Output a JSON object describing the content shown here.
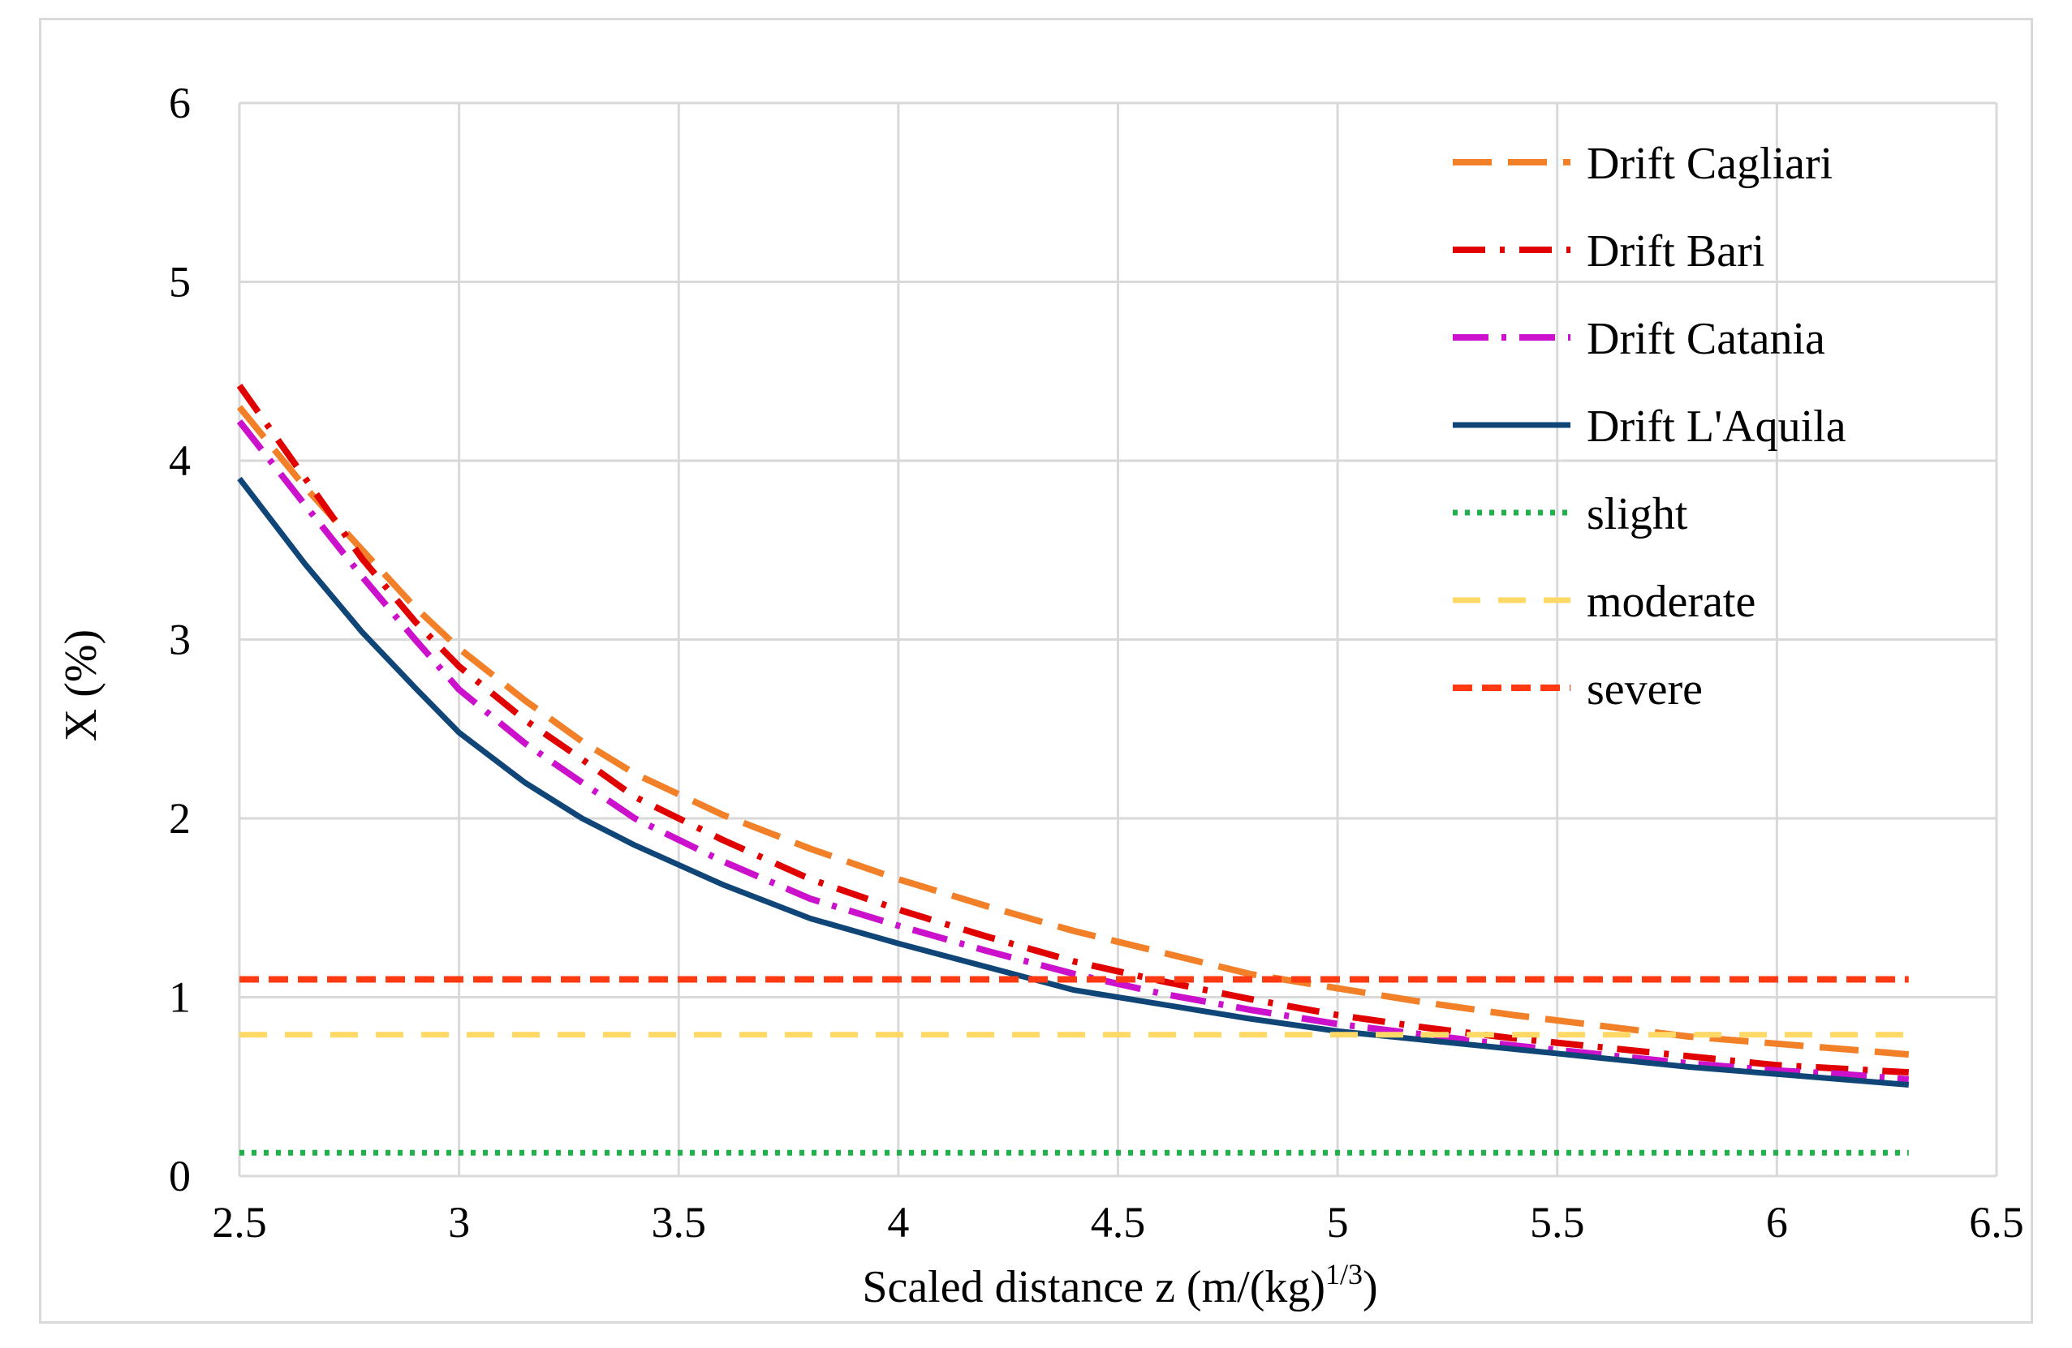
{
  "chart_data": {
    "type": "line",
    "title": "",
    "xlabel": "Scaled distance z  (m/(kg)",
    "xlabel_sup": "1/3",
    "xlabel_end": ")",
    "ylabel": "X (%)",
    "xlim": [
      2.5,
      6.5
    ],
    "ylim": [
      0,
      6
    ],
    "xticks": [
      "2.5",
      "3",
      "3.5",
      "4",
      "4.5",
      "5",
      "5.5",
      "6",
      "6.5"
    ],
    "yticks": [
      "0",
      "1",
      "2",
      "3",
      "4",
      "5",
      "6"
    ],
    "grid": true,
    "legend_position": "top-right",
    "x": [
      2.5,
      2.65,
      2.78,
      2.9,
      3.0,
      3.15,
      3.28,
      3.4,
      3.6,
      3.8,
      4.0,
      4.2,
      4.4,
      4.6,
      4.8,
      5.0,
      5.2,
      5.4,
      5.6,
      5.8,
      6.0,
      6.15,
      6.3
    ],
    "series": [
      {
        "name": "Drift Cagliari",
        "color": "#f28028",
        "style": "long-dash",
        "values": [
          4.3,
          3.85,
          3.5,
          3.18,
          2.95,
          2.66,
          2.43,
          2.25,
          2.02,
          1.83,
          1.66,
          1.51,
          1.37,
          1.25,
          1.13,
          1.05,
          0.97,
          0.9,
          0.84,
          0.78,
          0.74,
          0.71,
          0.68
        ]
      },
      {
        "name": "Drift Bari",
        "color": "#e00000",
        "style": "dash-dot",
        "values": [
          4.42,
          3.9,
          3.45,
          3.1,
          2.85,
          2.55,
          2.33,
          2.12,
          1.88,
          1.66,
          1.49,
          1.34,
          1.2,
          1.09,
          0.99,
          0.9,
          0.83,
          0.77,
          0.72,
          0.67,
          0.62,
          0.6,
          0.58
        ]
      },
      {
        "name": "Drift Catania",
        "color": "#cc11cc",
        "style": "dash-dot-long",
        "values": [
          4.22,
          3.75,
          3.35,
          3.0,
          2.72,
          2.42,
          2.2,
          2.0,
          1.76,
          1.55,
          1.4,
          1.26,
          1.13,
          1.02,
          0.93,
          0.85,
          0.79,
          0.73,
          0.68,
          0.63,
          0.59,
          0.57,
          0.54
        ]
      },
      {
        "name": "Drift L'Aquila",
        "color": "#0f4577",
        "style": "solid",
        "values": [
          3.9,
          3.42,
          3.04,
          2.73,
          2.48,
          2.2,
          2.0,
          1.85,
          1.63,
          1.44,
          1.3,
          1.17,
          1.04,
          0.96,
          0.88,
          0.81,
          0.76,
          0.71,
          0.66,
          0.61,
          0.57,
          0.54,
          0.51
        ]
      },
      {
        "name": "slight",
        "color": "#1fb24a",
        "style": "dotted",
        "constant": 0.13
      },
      {
        "name": "moderate",
        "color": "#ffd966",
        "style": "dash",
        "constant": 0.79
      },
      {
        "name": "severe",
        "color": "#ff3a12",
        "style": "short-dash",
        "constant": 1.1
      }
    ]
  }
}
